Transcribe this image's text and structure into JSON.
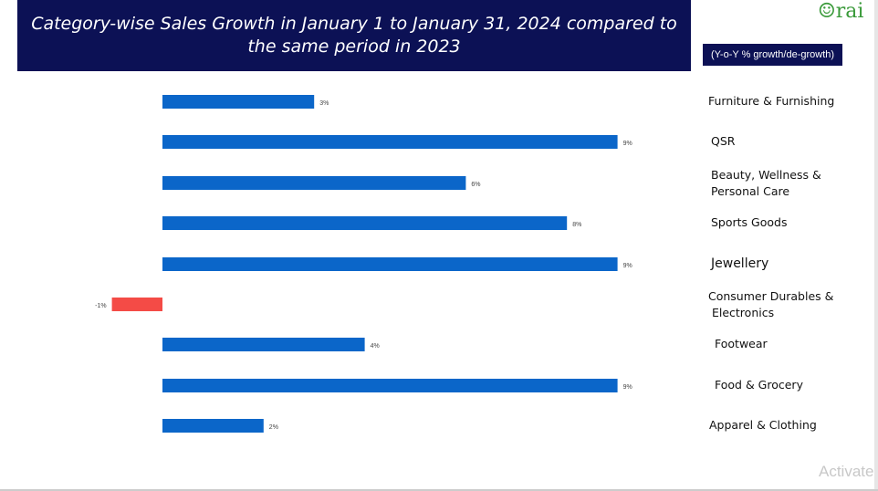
{
  "header": {
    "title": "Category-wise Sales Growth in January 1 to January 31, 2024 compared to the same period in 2023",
    "badge": "(Y-o-Y % growth/de-growth)",
    "logo": "rai",
    "watermark": "Activate"
  },
  "chart_data": {
    "type": "bar",
    "orientation": "horizontal",
    "title": "Category-wise Sales Growth in January 1 to January 31, 2024 compared to the same period in 2023",
    "categories": [
      "Furniture &  Furnishing",
      "QSR",
      "Beauty, Wellness & Personal Care",
      "Sports Goods",
      "Jewellery",
      "Consumer Durables & Electronics",
      "Footwear",
      "Food & Grocery",
      "Apparel & Clothing"
    ],
    "values": [
      3,
      9,
      6,
      8,
      9,
      -1,
      4,
      9,
      2
    ],
    "data_labels": [
      "3%",
      "9%",
      "6%",
      "8%",
      "9%",
      "-1%",
      "4%",
      "9%",
      "2%"
    ],
    "colors": {
      "positive": "#0b66c9",
      "negative": "#f44b46"
    },
    "grid": false
  }
}
